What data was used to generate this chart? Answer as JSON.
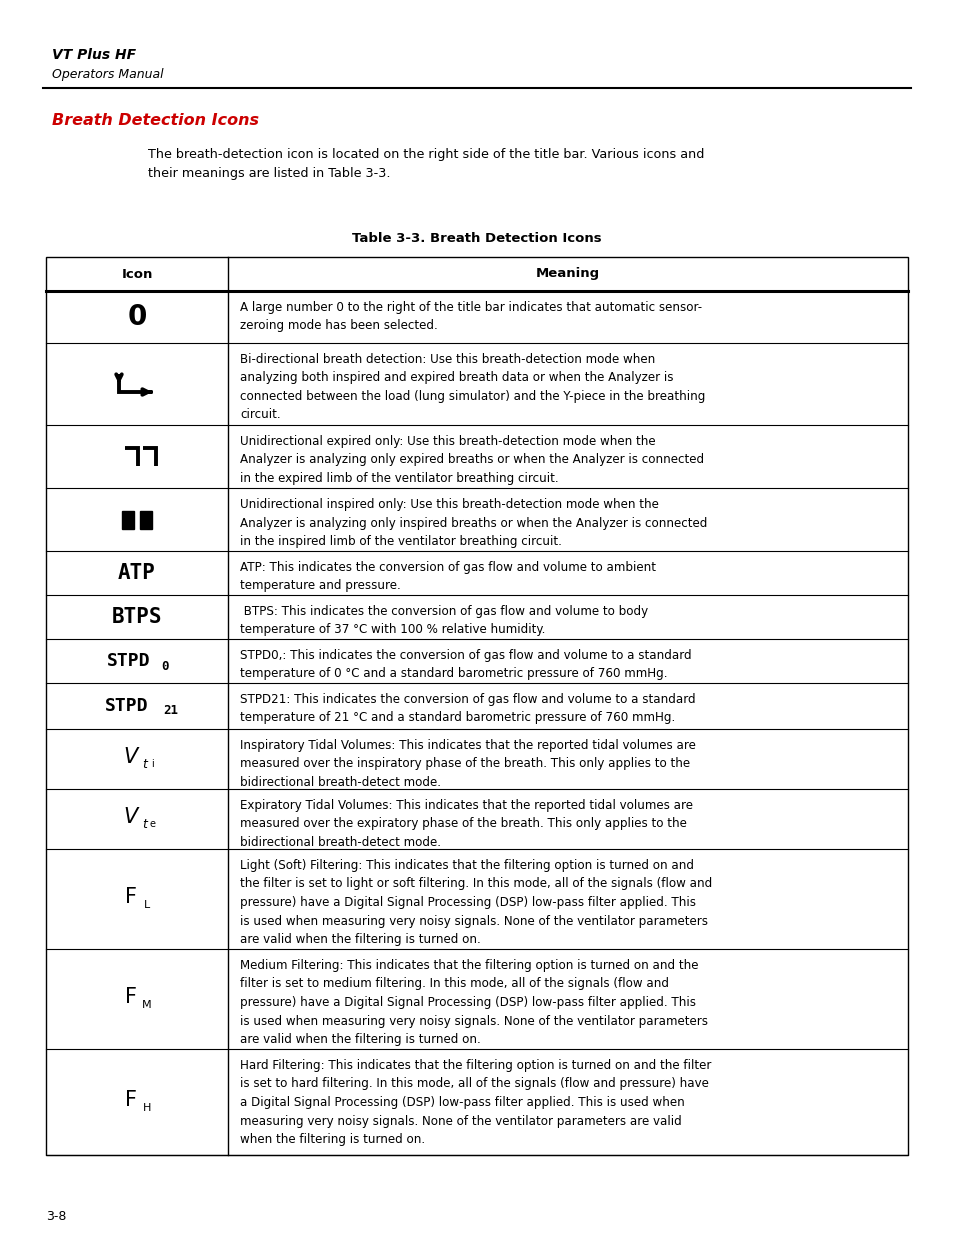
{
  "page_title": "VT Plus HF",
  "page_subtitle": "Operators Manual",
  "section_title": "Breath Detection Icons",
  "intro_text": "The breath-detection icon is located on the right side of the title bar. Various icons and\ntheir meanings are listed in Table 3-3.",
  "table_title": "Table 3-3. Breath Detection Icons",
  "col1_header": "Icon",
  "col2_header": "Meaning",
  "page_number": "3-8",
  "bg_color": "#ffffff",
  "text_color": "#000000",
  "red_color": "#cc0000",
  "rows": [
    {
      "icon_style": "zero",
      "meaning": "A large number 0 to the right of the title bar indicates that automatic sensor-\nzeroing mode has been selected."
    },
    {
      "icon_style": "bidir",
      "meaning": "Bi-directional breath detection: Use this breath-detection mode when\nanalyzing both inspired and expired breath data or when the Analyzer is\nconnected between the load (lung simulator) and the Y-piece in the breathing\ncircuit."
    },
    {
      "icon_style": "expired",
      "meaning": "Unidirectional expired only: Use this breath-detection mode when the\nAnalyzer is analyzing only expired breaths or when the Analyzer is connected\nin the expired limb of the ventilator breathing circuit."
    },
    {
      "icon_style": "inspired",
      "meaning": "Unidirectional inspired only: Use this breath-detection mode when the\nAnalyzer is analyzing only inspired breaths or when the Analyzer is connected\nin the inspired limb of the ventilator breathing circuit."
    },
    {
      "icon_style": "ATP",
      "meaning": "ATP: This indicates the conversion of gas flow and volume to ambient\ntemperature and pressure."
    },
    {
      "icon_style": "BTPS",
      "meaning": " BTPS: This indicates the conversion of gas flow and volume to body\ntemperature of 37 °C with 100 % relative humidity."
    },
    {
      "icon_style": "STPD0",
      "meaning": "STPD0,: This indicates the conversion of gas flow and volume to a standard\ntemperature of 0 °C and a standard barometric pressure of 760 mmHg."
    },
    {
      "icon_style": "STPD21",
      "meaning": "STPD21: This indicates the conversion of gas flow and volume to a standard\ntemperature of 21 °C and a standard barometric pressure of 760 mmHg."
    },
    {
      "icon_style": "Vti",
      "meaning": "Inspiratory Tidal Volumes: This indicates that the reported tidal volumes are\nmeasured over the inspiratory phase of the breath. This only applies to the\nbidirectional breath-detect mode."
    },
    {
      "icon_style": "Vte",
      "meaning": "Expiratory Tidal Volumes: This indicates that the reported tidal volumes are\nmeasured over the expiratory phase of the breath. This only applies to the\nbidirectional breath-detect mode."
    },
    {
      "icon_style": "FL",
      "meaning": "Light (Soft) Filtering: This indicates that the filtering option is turned on and\nthe filter is set to light or soft filtering. In this mode, all of the signals (flow and\npressure) have a Digital Signal Processing (DSP) low-pass filter applied. This\nis used when measuring very noisy signals. None of the ventilator parameters\nare valid when the filtering is turned on."
    },
    {
      "icon_style": "FM",
      "meaning": "Medium Filtering: This indicates that the filtering option is turned on and the\nfilter is set to medium filtering. In this mode, all of the signals (flow and\npressure) have a Digital Signal Processing (DSP) low-pass filter applied. This\nis used when measuring very noisy signals. None of the ventilator parameters\nare valid when the filtering is turned on."
    },
    {
      "icon_style": "FH",
      "meaning": "Hard Filtering: This indicates that the filtering option is turned on and the filter\nis set to hard filtering. In this mode, all of the signals (flow and pressure) have\na Digital Signal Processing (DSP) low-pass filter applied. This is used when\nmeasuring very noisy signals. None of the ventilator parameters are valid\nwhen the filtering is turned on."
    }
  ]
}
